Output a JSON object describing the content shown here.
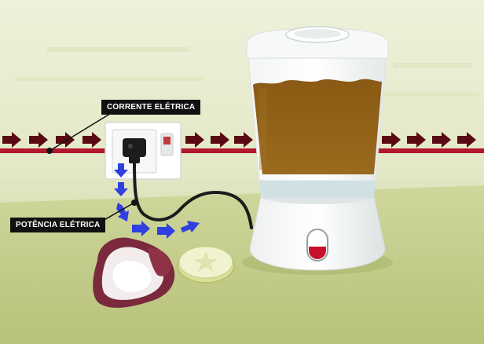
{
  "labels": {
    "current": "CORRENTE ELÉTRICA",
    "power": "POTÊNCIA ELÉTRICA"
  },
  "colors": {
    "background_top": "#e9edd2",
    "background_bottom": "#c2cc87",
    "wire": "#b3172d",
    "current_arrow": "#5a0a12",
    "power_arrow": "#2f3fe0",
    "blender_body": "#f4f6f6",
    "liquid": "#8a5a14",
    "cord": "#1c1c1c"
  },
  "icons": {
    "current_flow": "right-arrow",
    "power_flow": "down-right-arrow",
    "outlet": "wall-socket",
    "plug": "power-plug",
    "appliance": "blender",
    "fruit": "mango-half",
    "slice": "kiwi-slice"
  }
}
